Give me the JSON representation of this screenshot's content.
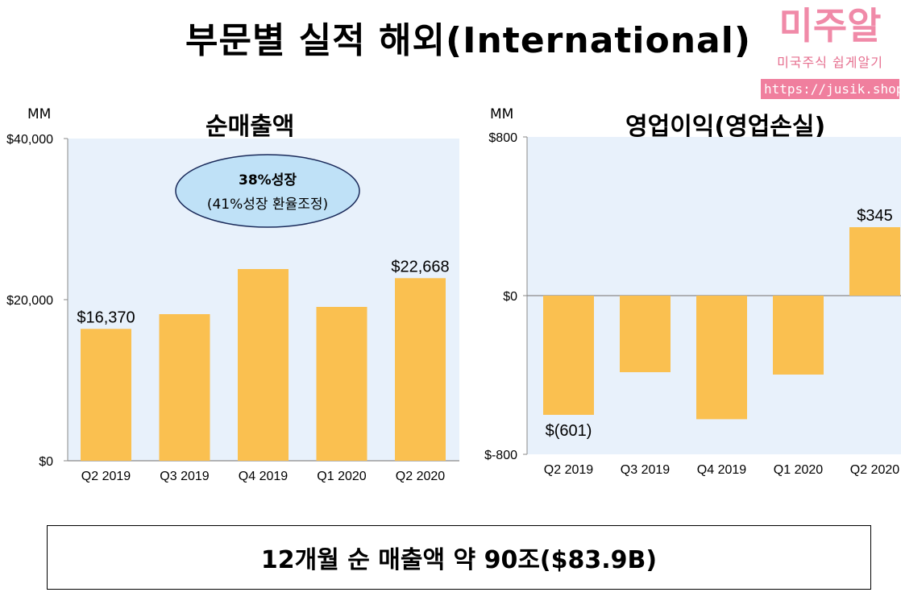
{
  "page": {
    "title": "부문별 실적  해외(International)",
    "summary": "12개월 순 매출액  약 90조($83.9B)"
  },
  "brand": {
    "name": "미주알",
    "tagline": "미국주식 쉽게알기",
    "url": "https://jusik.shop"
  },
  "chart_data": [
    {
      "type": "bar",
      "title": "순매출액",
      "unit": "MM",
      "categories": [
        "Q2 2019",
        "Q3 2019",
        "Q4 2019",
        "Q1 2020",
        "Q2 2020"
      ],
      "values": [
        16370,
        18200,
        23800,
        19100,
        22668
      ],
      "ylim": [
        0,
        40000
      ],
      "yticks": [
        "$0",
        "$20,000",
        "$40,000"
      ],
      "data_labels": [
        "$16,370",
        "",
        "",
        "",
        "$22,668"
      ],
      "annotation": {
        "line1": "38%성장",
        "line2": "(41%성장 환율조정)"
      },
      "grid": false,
      "bar_color": "#fac050",
      "plot_bg": "#e8f1fb"
    },
    {
      "type": "bar",
      "title": "영업이익(영업손실)",
      "unit": "MM",
      "categories": [
        "Q2 2019",
        "Q3 2019",
        "Q4 2019",
        "Q1 2020",
        "Q2 2020"
      ],
      "values": [
        -601,
        -386,
        -623,
        -398,
        345
      ],
      "ylim": [
        -800,
        800
      ],
      "yticks": [
        "$-800",
        "$0",
        "$800"
      ],
      "data_labels": [
        "$(601)",
        "",
        "",
        "",
        "$345"
      ],
      "grid": false,
      "bar_color": "#fac050",
      "plot_bg": "#e8f1fb"
    }
  ]
}
